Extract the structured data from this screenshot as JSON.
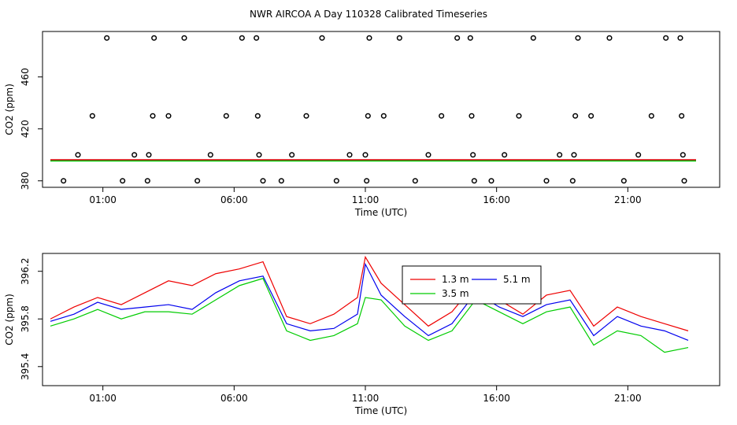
{
  "title": "NWR AIRCOA A  Day 110328  Calibrated Timeseries",
  "chart_data": [
    {
      "type": "scatter",
      "xlabel": "Time (UTC)",
      "ylabel": "CO2 (ppm)",
      "xlim": [
        -1.3,
        24.5
      ],
      "ylim": [
        375,
        495
      ],
      "x_ticks": [
        1,
        6,
        11,
        16,
        21
      ],
      "x_tick_labels": [
        "01:00",
        "06:00",
        "11:00",
        "16:00",
        "21:00"
      ],
      "y_ticks": [
        380,
        420,
        460
      ],
      "y_tick_labels": [
        "380",
        "420",
        "460"
      ],
      "points": [
        [
          -0.5,
          380
        ],
        [
          0.05,
          400
        ],
        [
          0.6,
          430
        ],
        [
          1.15,
          490
        ],
        [
          1.75,
          380
        ],
        [
          2.2,
          400
        ],
        [
          2.7,
          380
        ],
        [
          2.75,
          400
        ],
        [
          2.9,
          430
        ],
        [
          2.95,
          490
        ],
        [
          3.5,
          430
        ],
        [
          4.1,
          490
        ],
        [
          4.6,
          380
        ],
        [
          5.1,
          400
        ],
        [
          5.7,
          430
        ],
        [
          6.3,
          490
        ],
        [
          6.85,
          490
        ],
        [
          6.9,
          430
        ],
        [
          6.95,
          400
        ],
        [
          7.1,
          380
        ],
        [
          7.8,
          380
        ],
        [
          8.2,
          400
        ],
        [
          8.75,
          430
        ],
        [
          9.35,
          490
        ],
        [
          9.9,
          380
        ],
        [
          10.4,
          400
        ],
        [
          11.0,
          400
        ],
        [
          11.05,
          380
        ],
        [
          11.1,
          430
        ],
        [
          11.15,
          490
        ],
        [
          11.7,
          430
        ],
        [
          12.3,
          490
        ],
        [
          12.9,
          380
        ],
        [
          13.4,
          400
        ],
        [
          13.9,
          430
        ],
        [
          14.5,
          490
        ],
        [
          15.0,
          490
        ],
        [
          15.05,
          430
        ],
        [
          15.1,
          400
        ],
        [
          15.15,
          380
        ],
        [
          15.8,
          380
        ],
        [
          16.3,
          400
        ],
        [
          16.85,
          430
        ],
        [
          17.4,
          490
        ],
        [
          17.9,
          380
        ],
        [
          18.4,
          400
        ],
        [
          18.9,
          380
        ],
        [
          18.95,
          400
        ],
        [
          19.0,
          430
        ],
        [
          19.1,
          490
        ],
        [
          19.6,
          430
        ],
        [
          20.3,
          490
        ],
        [
          20.85,
          380
        ],
        [
          21.4,
          400
        ],
        [
          21.9,
          430
        ],
        [
          22.45,
          490
        ],
        [
          23.0,
          490
        ],
        [
          23.05,
          430
        ],
        [
          23.1,
          400
        ],
        [
          23.15,
          380
        ]
      ],
      "series": [
        {
          "name": "5.1 m",
          "color": "#0000ee",
          "x": [
            -1.0,
            23.6
          ],
          "values": [
            395.6,
            395.6
          ]
        },
        {
          "name": "1.3 m",
          "color": "#ee0000",
          "x": [
            -1.0,
            23.6
          ],
          "values": [
            396.2,
            396.2
          ]
        },
        {
          "name": "3.5 m",
          "color": "#00cc00",
          "x": [
            -1.0,
            23.6
          ],
          "values": [
            395.3,
            395.3
          ]
        }
      ]
    },
    {
      "type": "line",
      "xlabel": "Time (UTC)",
      "ylabel": "CO2 (ppm)",
      "xlim": [
        -1.3,
        24.5
      ],
      "ylim": [
        395.24,
        396.35
      ],
      "x_ticks": [
        1,
        6,
        11,
        16,
        21
      ],
      "x_tick_labels": [
        "01:00",
        "06:00",
        "11:00",
        "16:00",
        "21:00"
      ],
      "y_ticks": [
        395.4,
        395.8,
        396.2
      ],
      "y_tick_labels": [
        "395.4",
        "395.8",
        "396.2"
      ],
      "legend": {
        "position": "top-center",
        "entries": [
          "1.3 m",
          "5.1 m",
          "3.5 m"
        ]
      },
      "x": [
        -1.0,
        -0.1,
        0.8,
        1.7,
        2.6,
        3.5,
        4.4,
        5.3,
        6.2,
        7.1,
        8.0,
        8.9,
        9.8,
        10.7,
        11.0,
        11.6,
        12.5,
        13.4,
        14.3,
        15.2,
        16.1,
        17.0,
        17.9,
        18.8,
        19.7,
        20.6,
        21.5,
        22.4,
        23.3
      ],
      "series": [
        {
          "name": "1.3 m",
          "color": "#ee0000",
          "values": [
            395.8,
            395.9,
            395.98,
            395.92,
            396.02,
            396.12,
            396.08,
            396.18,
            396.22,
            396.28,
            395.82,
            395.76,
            395.84,
            395.98,
            396.32,
            396.1,
            395.92,
            395.74,
            395.86,
            396.1,
            395.96,
            395.84,
            396.0,
            396.04,
            395.74,
            395.9,
            395.82,
            395.76,
            395.7
          ]
        },
        {
          "name": "5.1 m",
          "color": "#0000ee",
          "values": [
            395.78,
            395.84,
            395.94,
            395.88,
            395.9,
            395.92,
            395.88,
            396.02,
            396.12,
            396.16,
            395.76,
            395.7,
            395.72,
            395.84,
            396.26,
            396.0,
            395.82,
            395.66,
            395.76,
            396.02,
            395.9,
            395.82,
            395.92,
            395.96,
            395.66,
            395.82,
            395.74,
            395.7,
            395.62
          ]
        },
        {
          "name": "3.5 m",
          "color": "#00cc00",
          "values": [
            395.74,
            395.8,
            395.88,
            395.8,
            395.86,
            395.86,
            395.84,
            395.96,
            396.08,
            396.14,
            395.7,
            395.62,
            395.66,
            395.76,
            395.98,
            395.96,
            395.74,
            395.62,
            395.7,
            395.96,
            395.86,
            395.76,
            395.86,
            395.9,
            395.58,
            395.7,
            395.66,
            395.52,
            395.56
          ]
        }
      ]
    }
  ]
}
